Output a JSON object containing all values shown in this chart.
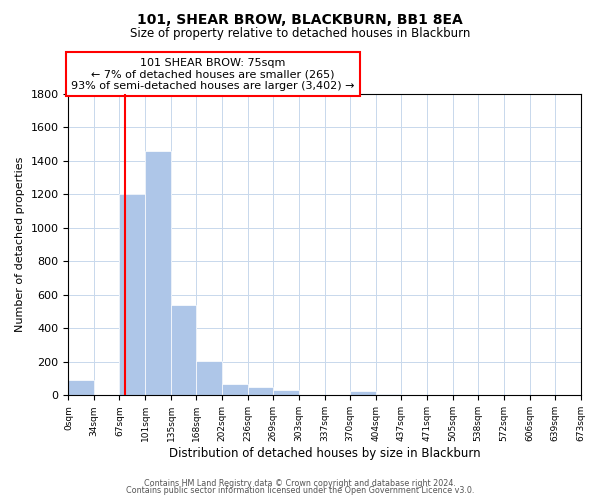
{
  "title": "101, SHEAR BROW, BLACKBURN, BB1 8EA",
  "subtitle": "Size of property relative to detached houses in Blackburn",
  "xlabel": "Distribution of detached houses by size in Blackburn",
  "ylabel": "Number of detached properties",
  "bin_edges": [
    0,
    34,
    67,
    101,
    135,
    168,
    202,
    236,
    269,
    303,
    337,
    370,
    404,
    437,
    471,
    505,
    538,
    572,
    606,
    639,
    673
  ],
  "bin_counts": [
    90,
    0,
    1200,
    1460,
    540,
    205,
    65,
    47,
    30,
    0,
    0,
    25,
    10,
    0,
    0,
    0,
    0,
    0,
    0,
    0
  ],
  "bar_color": "#aec6e8",
  "property_line_x": 75,
  "property_line_color": "red",
  "annotation_title": "101 SHEAR BROW: 75sqm",
  "annotation_line1": "← 7% of detached houses are smaller (265)",
  "annotation_line2": "93% of semi-detached houses are larger (3,402) →",
  "annotation_box_color": "white",
  "annotation_box_edge": "red",
  "tick_labels": [
    "0sqm",
    "34sqm",
    "67sqm",
    "101sqm",
    "135sqm",
    "168sqm",
    "202sqm",
    "236sqm",
    "269sqm",
    "303sqm",
    "337sqm",
    "370sqm",
    "404sqm",
    "437sqm",
    "471sqm",
    "505sqm",
    "538sqm",
    "572sqm",
    "606sqm",
    "639sqm",
    "673sqm"
  ],
  "ylim": [
    0,
    1800
  ],
  "yticks": [
    0,
    200,
    400,
    600,
    800,
    1000,
    1200,
    1400,
    1600,
    1800
  ],
  "footer_line1": "Contains HM Land Registry data © Crown copyright and database right 2024.",
  "footer_line2": "Contains public sector information licensed under the Open Government Licence v3.0.",
  "background_color": "#ffffff",
  "grid_color": "#c8d8ec"
}
